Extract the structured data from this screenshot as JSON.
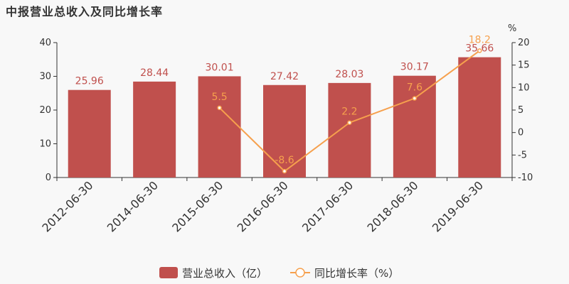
{
  "page": {
    "title": "中报营业总收入及同比增长率"
  },
  "chart_data": {
    "type": "bar+line",
    "categories": [
      "2012-06-30",
      "2014-06-30",
      "2015-06-30",
      "2016-06-30",
      "2017-06-30",
      "2018-06-30",
      "2019-06-30"
    ],
    "series": [
      {
        "name": "营业总收入（亿）",
        "type": "bar",
        "axis": "left",
        "color": "#c0504d",
        "values": [
          25.96,
          28.44,
          30.01,
          27.42,
          28.03,
          30.17,
          35.66
        ],
        "labels": [
          "25.96",
          "28.44",
          "30.01",
          "27.42",
          "28.03",
          "30.17",
          "35.66"
        ]
      },
      {
        "name": "同比增长率（%）",
        "type": "line",
        "axis": "right",
        "color": "#f6a04d",
        "values": [
          null,
          null,
          5.5,
          -8.6,
          2.2,
          7.6,
          18.2
        ],
        "labels": [
          "",
          "",
          "5.5",
          "-8.6",
          "2.2",
          "7.6",
          "18.2"
        ]
      }
    ],
    "y_left": {
      "ylim": [
        0,
        40
      ],
      "ticks": [
        0,
        10,
        20,
        30,
        40
      ],
      "tick_labels": [
        "0",
        "10",
        "20",
        "30",
        "40"
      ]
    },
    "y_right": {
      "unit": "%",
      "ylim": [
        -10,
        20
      ],
      "ticks": [
        -10,
        -5,
        0,
        5,
        10,
        15,
        20
      ],
      "tick_labels": [
        "-10",
        "-5",
        "0",
        "5",
        "10",
        "15",
        "20"
      ]
    },
    "grid": false,
    "legend_position": "bottom-center"
  }
}
